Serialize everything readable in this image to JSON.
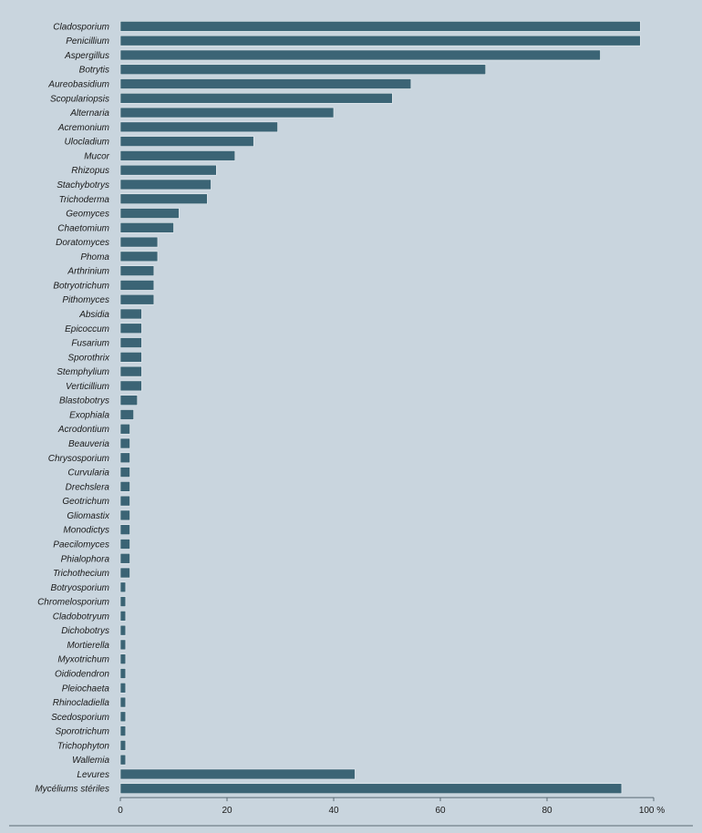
{
  "chart_data": {
    "type": "bar",
    "orientation": "horizontal",
    "categories": [
      "Cladosporium",
      "Penicillium",
      "Aspergillus",
      "Botrytis",
      "Aureobasidium",
      "Scopulariopsis",
      "Alternaria",
      "Acremonium",
      "Ulocladium",
      "Mucor",
      "Rhizopus",
      "Stachybotrys",
      "Trichoderma",
      "Geomyces",
      "Chaetomium",
      "Doratomyces",
      "Phoma",
      "Arthrinium",
      "Botryotrichum",
      "Pithomyces",
      "Absidia",
      "Epicoccum",
      "Fusarium",
      "Sporothrix",
      "Stemphylium",
      "Verticillium",
      "Blastobotrys",
      "Exophiala",
      "Acrodontium",
      "Beauveria",
      "Chrysosporium",
      "Curvularia",
      "Drechslera",
      "Geotrichum",
      "Gliomastix",
      "Monodictys",
      "Paecilomyces",
      "Phialophora",
      "Trichothecium",
      "Botryosporium",
      "Chromelosporium",
      "Cladobotryum",
      "Dichobotrys",
      "Mortierella",
      "Myxotrichum",
      "Oidiodendron",
      "Pleiochaeta",
      "Rhinocladiella",
      "Scedosporium",
      "Sporotrichum",
      "Trichophyton",
      "Wallemia",
      "Levures",
      "Mycéliums stériles"
    ],
    "values": [
      97.5,
      97.5,
      90,
      68.5,
      54.5,
      51,
      40,
      29.5,
      25,
      21.5,
      18,
      17,
      16.3,
      11,
      10,
      7,
      7,
      6.3,
      6.3,
      6.3,
      4,
      4,
      4,
      4,
      4,
      4,
      3.2,
      2.5,
      1.8,
      1.8,
      1.8,
      1.8,
      1.8,
      1.8,
      1.8,
      1.8,
      1.8,
      1.8,
      1.8,
      1,
      1,
      1,
      1,
      1,
      1,
      1,
      1,
      1,
      1,
      1,
      1,
      1,
      44,
      94
    ],
    "xlim": [
      0,
      100
    ],
    "xticks": [
      0,
      20,
      40,
      60,
      80,
      100
    ],
    "xtick_labels": [
      "0",
      "20",
      "40",
      "60",
      "80",
      "100 %"
    ],
    "grid": false,
    "legend": "none",
    "colors": {
      "bar": "#3b6475",
      "background": "#c9d5de",
      "axis": "#5a6a74"
    }
  }
}
